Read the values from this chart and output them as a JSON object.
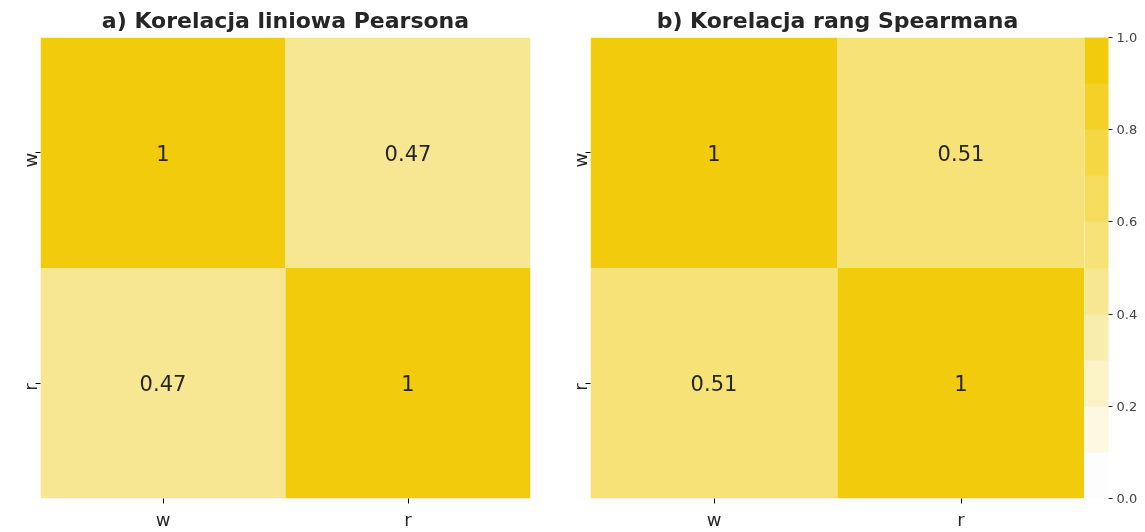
{
  "chart_data": [
    {
      "type": "heatmap",
      "title": "a) Korelacja liniowa Pearsona",
      "categories": [
        "w",
        "r"
      ],
      "y_categories": [
        "w",
        "r"
      ],
      "cells": [
        [
          1,
          0.47
        ],
        [
          0.47,
          1
        ]
      ],
      "data_labels": true
    },
    {
      "type": "heatmap",
      "title": "b) Korelacja rang Spearmana",
      "categories": [
        "w",
        "r"
      ],
      "y_categories": [
        "w",
        "r"
      ],
      "cells": [
        [
          1,
          0.51
        ],
        [
          0.51,
          1
        ]
      ],
      "data_labels": true,
      "clim": [
        0,
        1
      ],
      "cticks": [
        {
          "value": 0,
          "label": "0.0"
        },
        {
          "value": 0.2,
          "label": "0.2"
        },
        {
          "value": 0.4,
          "label": "0.4"
        },
        {
          "value": 0.6,
          "label": "0.6"
        },
        {
          "value": 0.8,
          "label": "0.8"
        },
        {
          "value": 1,
          "label": "1.0"
        }
      ]
    }
  ]
}
